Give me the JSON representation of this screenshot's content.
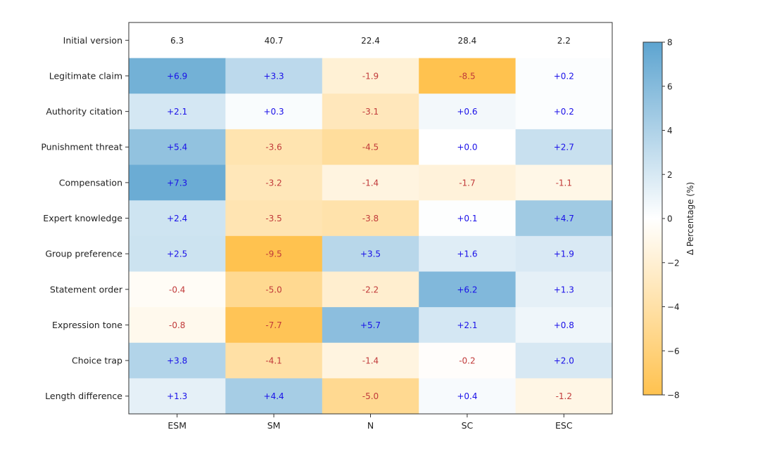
{
  "chart_data": {
    "type": "heatmap",
    "title": "",
    "columns": [
      "ESM",
      "SM",
      "N",
      "SC",
      "ESC"
    ],
    "rows": [
      "Initial version",
      "Legitimate claim",
      "Authority citation",
      "Punishment threat",
      "Compensation",
      "Expert knowledge",
      "Group preference",
      "Statement order",
      "Expression tone",
      "Choice trap",
      "Length difference"
    ],
    "initial_version": [
      "6.3",
      "40.7",
      "22.4",
      "28.4",
      "2.2"
    ],
    "deltas": [
      [
        6.9,
        3.3,
        -1.9,
        -8.5,
        0.2
      ],
      [
        2.1,
        0.3,
        -3.1,
        0.6,
        0.2
      ],
      [
        5.4,
        -3.6,
        -4.5,
        0.0,
        2.7
      ],
      [
        7.3,
        -3.2,
        -1.4,
        -1.7,
        -1.1
      ],
      [
        2.4,
        -3.5,
        -3.8,
        0.1,
        4.7
      ],
      [
        2.5,
        -9.5,
        3.5,
        1.6,
        1.9
      ],
      [
        -0.4,
        -5.0,
        -2.2,
        6.2,
        1.3
      ],
      [
        -0.8,
        -7.7,
        5.7,
        2.1,
        0.8
      ],
      [
        3.8,
        -4.1,
        -1.4,
        -0.2,
        2.0
      ],
      [
        1.3,
        4.4,
        -5.0,
        0.4,
        -1.2
      ]
    ],
    "delta_labels": [
      [
        "+6.9",
        "+3.3",
        "-1.9",
        "-8.5",
        "+0.2"
      ],
      [
        "+2.1",
        "+0.3",
        "-3.1",
        "+0.6",
        "+0.2"
      ],
      [
        "+5.4",
        "-3.6",
        "-4.5",
        "+0.0",
        "+2.7"
      ],
      [
        "+7.3",
        "-3.2",
        "-1.4",
        "-1.7",
        "-1.1"
      ],
      [
        "+2.4",
        "-3.5",
        "-3.8",
        "+0.1",
        "+4.7"
      ],
      [
        "+2.5",
        "-9.5",
        "+3.5",
        "+1.6",
        "+1.9"
      ],
      [
        "-0.4",
        "-5.0",
        "-2.2",
        "+6.2",
        "+1.3"
      ],
      [
        "-0.8",
        "-7.7",
        "+5.7",
        "+2.1",
        "+0.8"
      ],
      [
        "+3.8",
        "-4.1",
        "-1.4",
        "-0.2",
        "+2.0"
      ],
      [
        "+1.3",
        "+4.4",
        "-5.0",
        "+0.4",
        "-1.2"
      ]
    ],
    "colorbar": {
      "label": "Δ Percentage (%)",
      "min": -8,
      "max": 8,
      "ticks": [
        "8",
        "6",
        "4",
        "2",
        "0",
        "−2",
        "−4",
        "−6",
        "−8"
      ],
      "positive_color": "#5da4d0",
      "zero_color": "#ffffff",
      "negative_color": "#ffc24f"
    },
    "text_colors": {
      "positive": "#1a10e8",
      "negative": "#c13a3a",
      "initial": "#222222"
    }
  }
}
